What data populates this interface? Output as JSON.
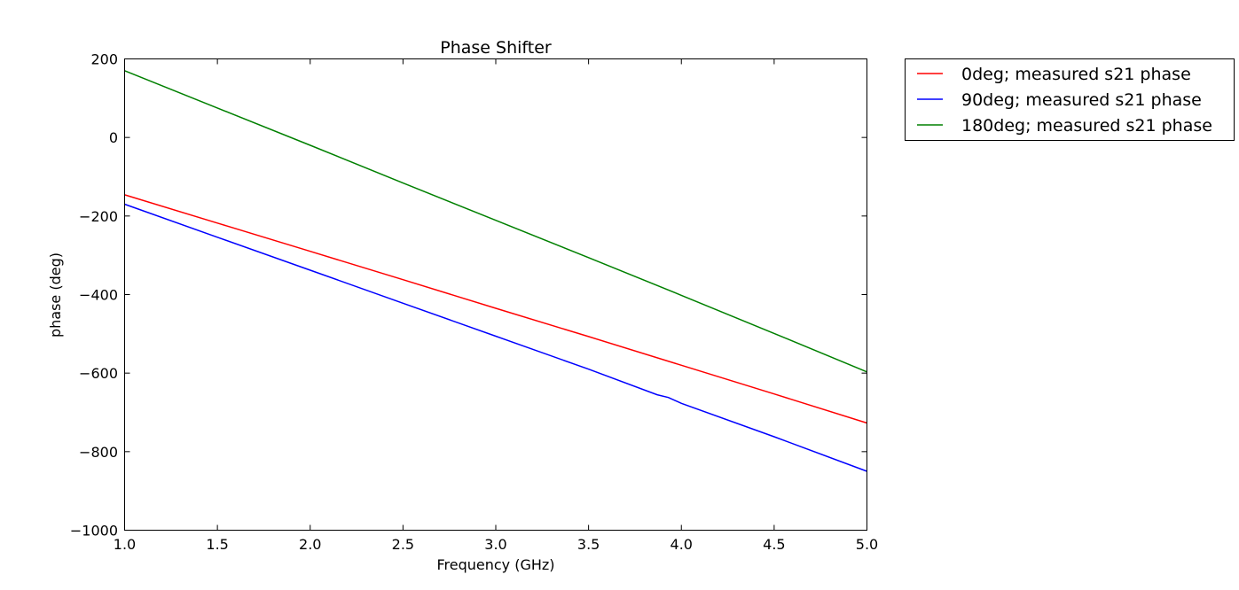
{
  "chart_data": {
    "type": "line",
    "title": "Phase Shifter",
    "xlabel": "Frequency (GHz)",
    "ylabel": "phase (deg)",
    "xlim": [
      1.0,
      5.0
    ],
    "ylim": [
      -1000,
      200
    ],
    "xticks": [
      1.0,
      1.5,
      2.0,
      2.5,
      3.0,
      3.5,
      4.0,
      4.5,
      5.0
    ],
    "xtick_labels": [
      "1.0",
      "1.5",
      "2.0",
      "2.5",
      "3.0",
      "3.5",
      "4.0",
      "4.5",
      "5.0"
    ],
    "yticks": [
      200,
      0,
      -200,
      -400,
      -600,
      -800,
      -1000
    ],
    "ytick_labels": [
      "200",
      "0",
      "−200",
      "−400",
      "−600",
      "−800",
      "−1000"
    ],
    "grid": false,
    "legend_position": "outside-top-right",
    "series": [
      {
        "name": "0deg; measured s21 phase",
        "color": "#ff0000",
        "x": [
          1.0,
          1.5,
          2.0,
          2.5,
          3.0,
          3.5,
          4.0,
          4.5,
          5.0
        ],
        "y": [
          -146,
          -218,
          -290,
          -362,
          -435,
          -507,
          -580,
          -653,
          -727
        ]
      },
      {
        "name": "90deg; measured s21 phase",
        "color": "#0000ff",
        "x": [
          1.0,
          1.5,
          2.0,
          2.5,
          3.0,
          3.5,
          4.0,
          3.87,
          3.93,
          4.5,
          5.0
        ],
        "y": [
          -170,
          -254,
          -338,
          -422,
          -506,
          -590,
          -677,
          -655,
          -662,
          -762,
          -850
        ]
      },
      {
        "name": "180deg; measured s21 phase",
        "color": "#008000",
        "x": [
          1.0,
          1.5,
          2.0,
          2.5,
          3.0,
          3.5,
          4.0,
          4.5,
          5.0
        ],
        "y": [
          170,
          75,
          -20,
          -116,
          -211,
          -306,
          -402,
          -499,
          -597
        ]
      }
    ]
  }
}
